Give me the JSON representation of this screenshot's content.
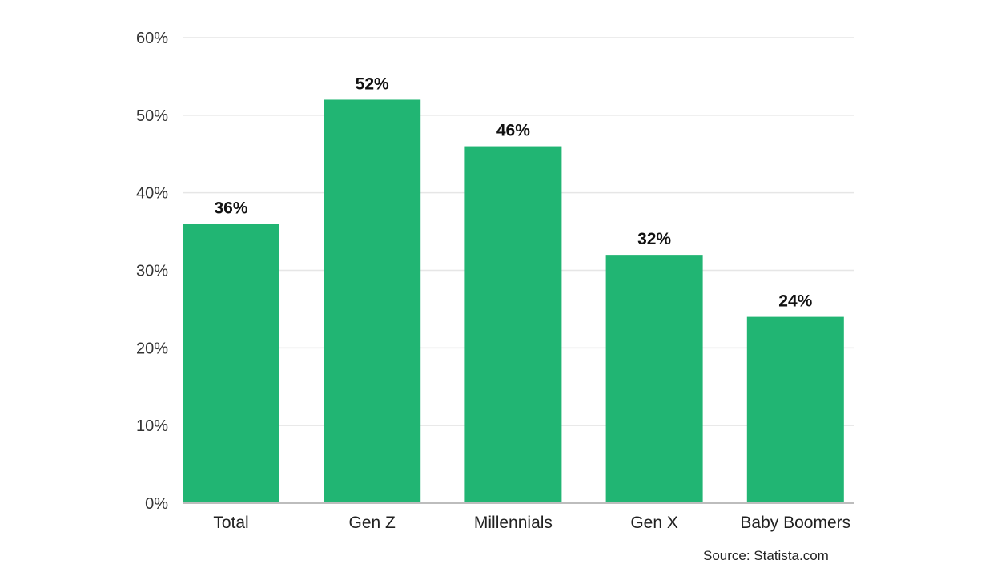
{
  "chart_data": {
    "type": "bar",
    "categories": [
      "Total",
      "Gen Z",
      "Millennials",
      "Gen X",
      "Baby Boomers"
    ],
    "values": [
      36,
      52,
      46,
      32,
      24
    ],
    "data_labels": [
      "36%",
      "52%",
      "46%",
      "32%",
      "24%"
    ],
    "title": "",
    "xlabel": "",
    "ylabel": "",
    "ylim": [
      0,
      60
    ],
    "yticks": [
      0,
      10,
      20,
      30,
      40,
      50,
      60
    ],
    "ytick_labels": [
      "0%",
      "10%",
      "20%",
      "30%",
      "40%",
      "50%",
      "60%"
    ],
    "grid": true,
    "legend": "none",
    "bar_color": "#21b573",
    "grid_color": "#e6e6e6"
  },
  "source": "Source: Statista.com"
}
